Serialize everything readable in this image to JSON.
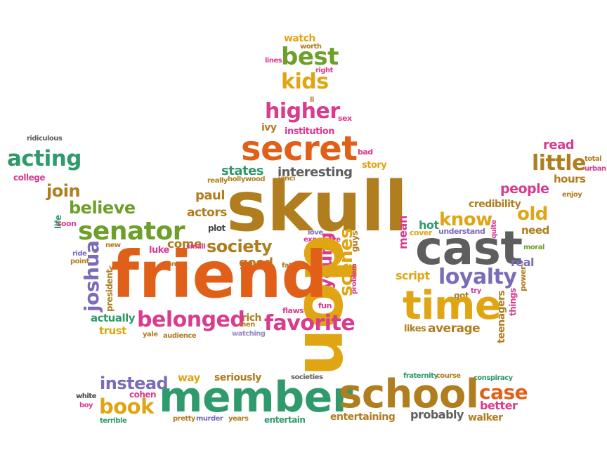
{
  "palette": {
    "orange": "#e0601a",
    "olive": "#b07d1f",
    "green": "#2f9a6b",
    "lime": "#6d9f2a",
    "pink": "#d93b8e",
    "purple": "#7c6bb8",
    "gray": "#5e5e5e",
    "gold": "#e0a512",
    "lightpurple": "#9a8ac6",
    "dark": "#444444"
  },
  "words": [
    {
      "text": "watch",
      "color": "gold"
    },
    {
      "text": "worth",
      "color": "olive"
    },
    {
      "text": "best",
      "color": "lime"
    },
    {
      "text": "lines",
      "color": "pink"
    },
    {
      "text": "right",
      "color": "pink"
    },
    {
      "text": "kids",
      "color": "gold"
    },
    {
      "text": "ll",
      "color": "olive"
    },
    {
      "text": "higher",
      "color": "pink"
    },
    {
      "text": "sex",
      "color": "pink"
    },
    {
      "text": "ivy",
      "color": "olive"
    },
    {
      "text": "institution",
      "color": "pink"
    },
    {
      "text": "secret",
      "color": "orange"
    },
    {
      "text": "bad",
      "color": "pink"
    },
    {
      "text": "ridiculous",
      "color": "gray"
    },
    {
      "text": "acting",
      "color": "green"
    },
    {
      "text": "college",
      "color": "pink"
    },
    {
      "text": "states",
      "color": "green"
    },
    {
      "text": "interesting",
      "color": "gray"
    },
    {
      "text": "story",
      "color": "gold"
    },
    {
      "text": "really",
      "color": "olive"
    },
    {
      "text": "hollywood",
      "color": "olive"
    },
    {
      "text": "vinci",
      "color": "olive"
    },
    {
      "text": "read",
      "color": "pink"
    },
    {
      "text": "total",
      "color": "olive"
    },
    {
      "text": "little",
      "color": "olive"
    },
    {
      "text": "urban",
      "color": "pink"
    },
    {
      "text": "hours",
      "color": "olive"
    },
    {
      "text": "join",
      "color": "olive"
    },
    {
      "text": "paul",
      "color": "olive"
    },
    {
      "text": "skull",
      "color": "olive"
    },
    {
      "text": "people",
      "color": "pink"
    },
    {
      "text": "enjoy",
      "color": "olive"
    },
    {
      "text": "credibility",
      "color": "olive"
    },
    {
      "text": "life",
      "color": "green"
    },
    {
      "text": "believe",
      "color": "lime"
    },
    {
      "text": "soon",
      "color": "pink"
    },
    {
      "text": "actors",
      "color": "olive"
    },
    {
      "text": "know",
      "color": "gold"
    },
    {
      "text": "old",
      "color": "gold"
    },
    {
      "text": "senator",
      "color": "lime"
    },
    {
      "text": "plot",
      "color": "dark"
    },
    {
      "text": "mean",
      "color": "pink"
    },
    {
      "text": "quite",
      "color": "pink"
    },
    {
      "text": "hot",
      "color": "green"
    },
    {
      "text": "cover",
      "color": "gold"
    },
    {
      "text": "understand",
      "color": "purple"
    },
    {
      "text": "need",
      "color": "olive"
    },
    {
      "text": "love",
      "color": "purple"
    },
    {
      "text": "come",
      "color": "olive"
    },
    {
      "text": "expensive",
      "color": "pink"
    },
    {
      "text": "cast",
      "color": "gray"
    },
    {
      "text": "new",
      "color": "olive"
    },
    {
      "text": "small",
      "color": "pink"
    },
    {
      "text": "society",
      "color": "olive"
    },
    {
      "text": "moral",
      "color": "lime"
    },
    {
      "text": "ride",
      "color": "purple"
    },
    {
      "text": "point",
      "color": "olive"
    },
    {
      "text": "luke",
      "color": "pink"
    },
    {
      "text": "young",
      "color": "pink"
    },
    {
      "text": "scenes",
      "color": "gold"
    },
    {
      "text": "guys",
      "color": "olive"
    },
    {
      "text": "real",
      "color": "purple"
    },
    {
      "text": "son",
      "color": "olive"
    },
    {
      "text": "good",
      "color": "olive"
    },
    {
      "text": "father",
      "color": "olive"
    },
    {
      "text": "don",
      "color": "gold"
    },
    {
      "text": "ve",
      "color": "olive"
    },
    {
      "text": "joshua",
      "color": "purple"
    },
    {
      "text": "friend",
      "color": "orange"
    },
    {
      "text": "problem",
      "color": "pink"
    },
    {
      "text": "script",
      "color": "gold"
    },
    {
      "text": "loyalty",
      "color": "purple"
    },
    {
      "text": "power",
      "color": "olive"
    },
    {
      "text": "president",
      "color": "olive"
    },
    {
      "text": "try",
      "color": "pink"
    },
    {
      "text": "got",
      "color": "olive"
    },
    {
      "text": "time",
      "color": "gold"
    },
    {
      "text": "teenagers",
      "color": "olive"
    },
    {
      "text": "things",
      "color": "pink"
    },
    {
      "text": "actually",
      "color": "green"
    },
    {
      "text": "fun",
      "color": "pink"
    },
    {
      "text": "flaws",
      "color": "pink"
    },
    {
      "text": "rich",
      "color": "olive"
    },
    {
      "text": "belonged",
      "color": "pink"
    },
    {
      "text": "men",
      "color": "olive"
    },
    {
      "text": "favorite",
      "color": "pink"
    },
    {
      "text": "trust",
      "color": "gold"
    },
    {
      "text": "likes",
      "color": "olive"
    },
    {
      "text": "average",
      "color": "olive"
    },
    {
      "text": "yale",
      "color": "olive"
    },
    {
      "text": "audience",
      "color": "olive"
    },
    {
      "text": "watching",
      "color": "lightpurple"
    },
    {
      "text": "instead",
      "color": "purple"
    },
    {
      "text": "way",
      "color": "gold"
    },
    {
      "text": "seriously",
      "color": "olive"
    },
    {
      "text": "societies",
      "color": "gray"
    },
    {
      "text": "fraternity",
      "color": "green"
    },
    {
      "text": "course",
      "color": "olive"
    },
    {
      "text": "conspiracy",
      "color": "green"
    },
    {
      "text": "cohen",
      "color": "pink"
    },
    {
      "text": "white",
      "color": "dark"
    },
    {
      "text": "member",
      "color": "green"
    },
    {
      "text": "school",
      "color": "olive"
    },
    {
      "text": "case",
      "color": "orange"
    },
    {
      "text": "boy",
      "color": "pink"
    },
    {
      "text": "book",
      "color": "gold"
    },
    {
      "text": "better",
      "color": "pink"
    },
    {
      "text": "terrible",
      "color": "green"
    },
    {
      "text": "pretty",
      "color": "olive"
    },
    {
      "text": "murder",
      "color": "purple"
    },
    {
      "text": "years",
      "color": "olive"
    },
    {
      "text": "entertain",
      "color": "green"
    },
    {
      "text": "entertaining",
      "color": "olive"
    },
    {
      "text": "probably",
      "color": "gray"
    },
    {
      "text": "walker",
      "color": "olive"
    }
  ]
}
